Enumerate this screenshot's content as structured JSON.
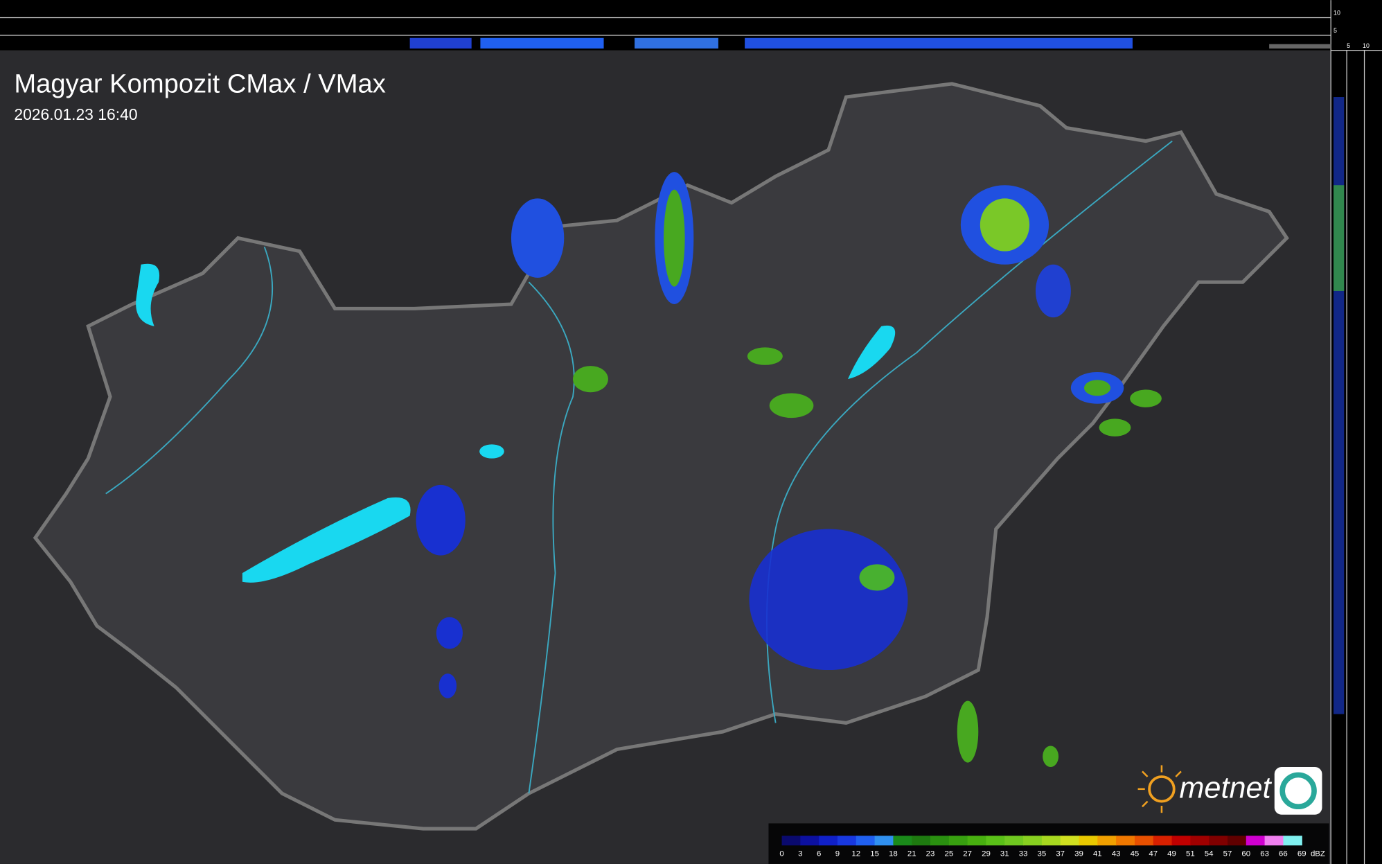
{
  "header": {
    "title": "Magyar Kompozit CMax / VMax",
    "timestamp": "2026.01.23 16:40"
  },
  "profile_axes": {
    "top": [
      "10",
      "5"
    ],
    "side": [
      "5",
      "10"
    ]
  },
  "logo": "metnet",
  "legend": {
    "labels": [
      "0",
      "3",
      "6",
      "9",
      "12",
      "15",
      "18",
      "21",
      "23",
      "25",
      "27",
      "29",
      "31",
      "33",
      "35",
      "37",
      "39",
      "41",
      "43",
      "45",
      "47",
      "49",
      "51",
      "54",
      "57",
      "60",
      "63",
      "66",
      "69"
    ],
    "unit": "dBZ",
    "colors": [
      "#0a0a6e",
      "#0c10a0",
      "#1020c8",
      "#1838e0",
      "#2060f0",
      "#3090f0",
      "#1a8a1a",
      "#1e7a10",
      "#2a9010",
      "#38a010",
      "#48b010",
      "#5ac018",
      "#70c820",
      "#88d020",
      "#a8d820",
      "#d0e020",
      "#e8c800",
      "#f0a000",
      "#f07800",
      "#e85000",
      "#d82000",
      "#c00000",
      "#a00000",
      "#800000",
      "#600000",
      "#d000d0",
      "#f080f0",
      "#80f0f0"
    ]
  }
}
